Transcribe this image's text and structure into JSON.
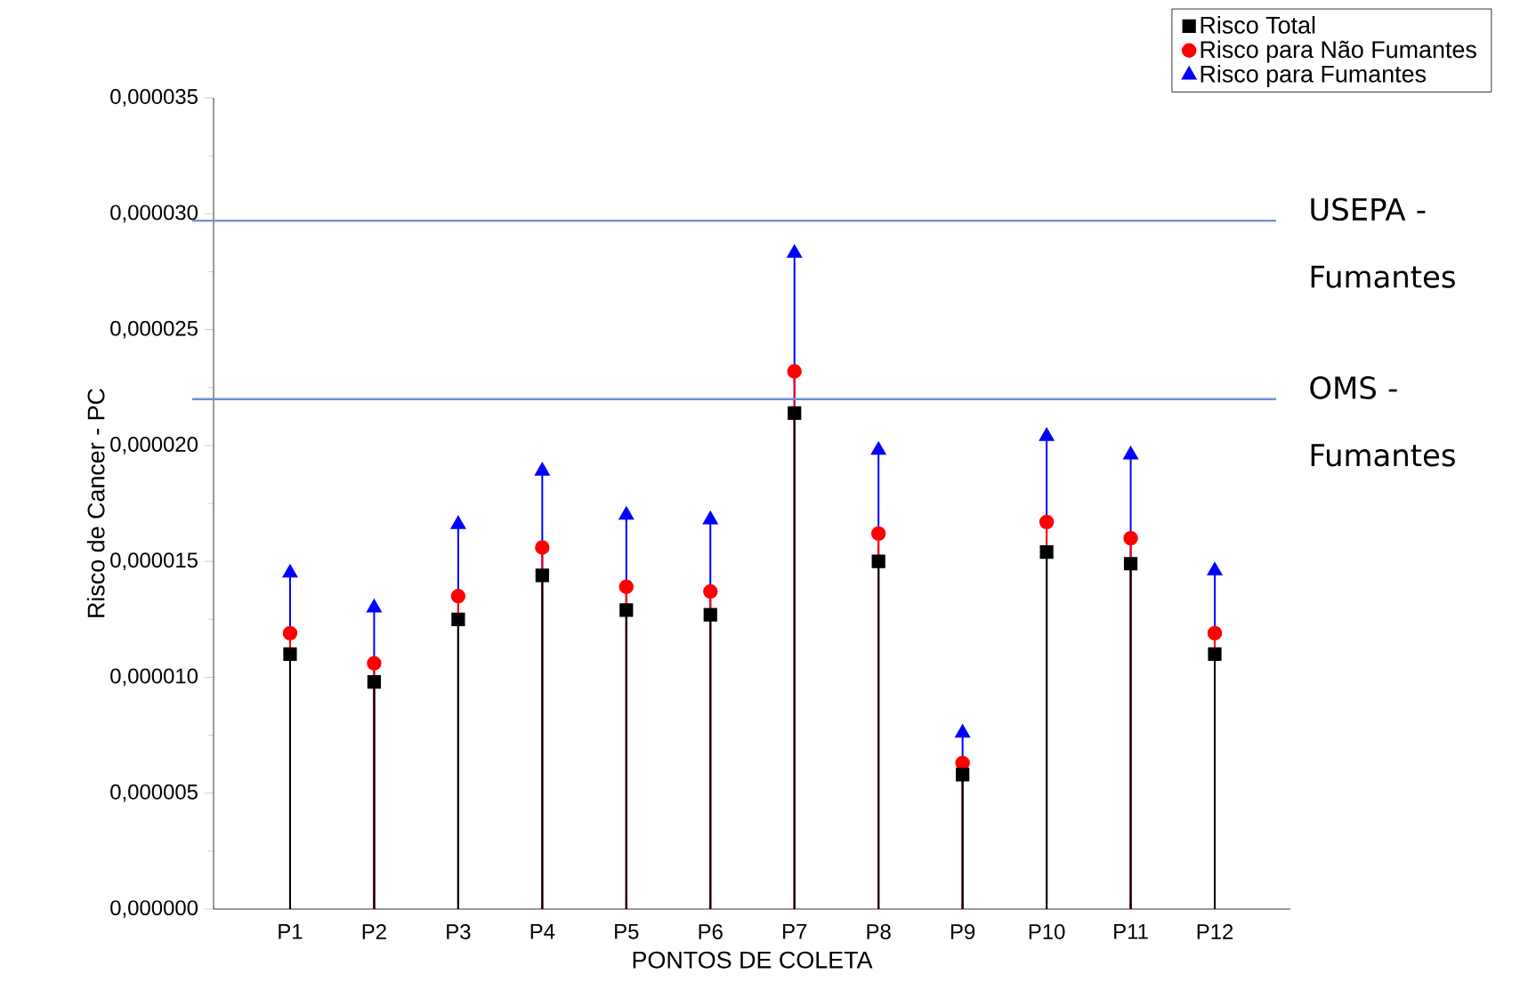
{
  "chart_data": {
    "type": "lollipop",
    "xlabel": "PONTOS DE COLETA",
    "ylabel": "Risco de Cancer - PC",
    "categories": [
      "P1",
      "P2",
      "P3",
      "P4",
      "P5",
      "P6",
      "P7",
      "P8",
      "P9",
      "P10",
      "P11",
      "P12"
    ],
    "series": [
      {
        "name": "Risco para Fumantes",
        "color": "#0000ff",
        "marker": "triangle",
        "values": [
          1.45e-05,
          1.3e-05,
          1.66e-05,
          1.89e-05,
          1.7e-05,
          1.68e-05,
          2.83e-05,
          1.98e-05,
          7.6e-06,
          2.04e-05,
          1.96e-05,
          1.46e-05
        ]
      },
      {
        "name": "Risco para Não Fumantes",
        "color": "#ff0000",
        "marker": "circle",
        "values": [
          1.19e-05,
          1.06e-05,
          1.35e-05,
          1.56e-05,
          1.39e-05,
          1.37e-05,
          2.32e-05,
          1.62e-05,
          6.3e-06,
          1.67e-05,
          1.6e-05,
          1.19e-05
        ]
      },
      {
        "name": "Risco Total",
        "color": "#000000",
        "marker": "square",
        "values": [
          1.1e-05,
          9.8e-06,
          1.25e-05,
          1.44e-05,
          1.29e-05,
          1.27e-05,
          2.14e-05,
          1.5e-05,
          5.8e-06,
          1.54e-05,
          1.49e-05,
          1.1e-05
        ]
      }
    ],
    "ylim": [
      0,
      3.5e-05
    ],
    "yticks": [
      {
        "value": 0,
        "label": "0,000000"
      },
      {
        "value": 5e-06,
        "label": "0,000005"
      },
      {
        "value": 1e-05,
        "label": "0,000010"
      },
      {
        "value": 1.5e-05,
        "label": "0,000015"
      },
      {
        "value": 2e-05,
        "label": "0,000020"
      },
      {
        "value": 2.5e-05,
        "label": "0,000025"
      },
      {
        "value": 3e-05,
        "label": "0,000030"
      },
      {
        "value": 3.5e-05,
        "label": "0,000035"
      }
    ],
    "ref_lines": [
      {
        "axis": "y",
        "value": 2.97e-05,
        "label": "USEPA - Fumantes",
        "color": "#6b8fd6"
      },
      {
        "axis": "y",
        "value": 2.2e-05,
        "label": "OMS - Fumantes",
        "color": "#6b8fd6"
      }
    ],
    "legend": "top right",
    "grid": false
  }
}
